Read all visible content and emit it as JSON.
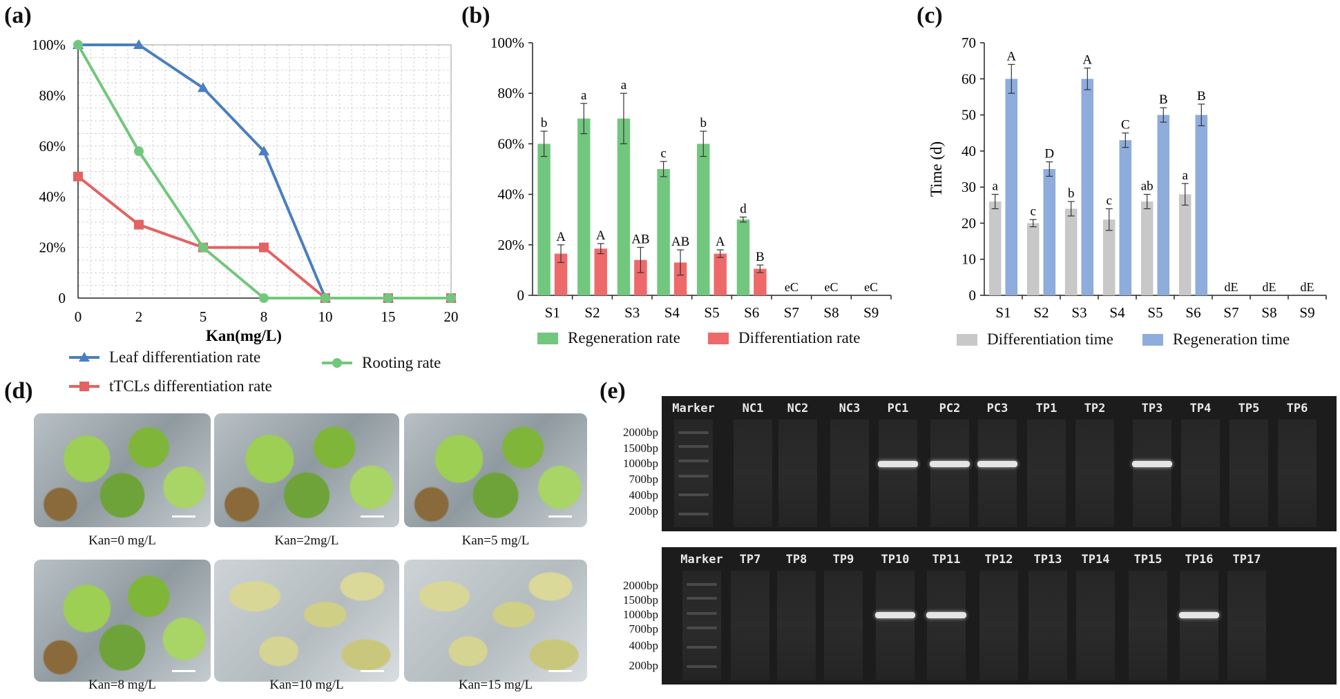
{
  "panels": {
    "a": "(a)",
    "b": "(b)",
    "c": "(c)",
    "d": "(d)",
    "e": "(e)"
  },
  "colors": {
    "blue": "#4a7fc0",
    "red": "#e36262",
    "green": "#72c77e",
    "bar_green": "#72c77e",
    "bar_red": "#ee6a6a",
    "bar_gray": "#c8c8c8",
    "bar_blue": "#8eacdc"
  },
  "chart_data": [
    {
      "id": "a",
      "type": "line",
      "xlabel": "Kan(mg/L)",
      "x": [
        0,
        2,
        5,
        8,
        10,
        15,
        20
      ],
      "ylim": [
        0,
        100
      ],
      "yticks": [
        "0",
        "20%",
        "40%",
        "60%",
        "80%",
        "100%"
      ],
      "grid": true,
      "series": [
        {
          "name": "Leaf differentiation rate",
          "marker": "triangle",
          "values": [
            100,
            100,
            83,
            58,
            0,
            0,
            0
          ]
        },
        {
          "name": "tTCLs differentiation rate",
          "marker": "square",
          "values": [
            48,
            29,
            20,
            20,
            0,
            0,
            0
          ]
        },
        {
          "name": "Rooting rate",
          "marker": "circle",
          "values": [
            100,
            58,
            20,
            0,
            0,
            0,
            0
          ]
        }
      ]
    },
    {
      "id": "b",
      "type": "bar",
      "categories": [
        "S1",
        "S2",
        "S3",
        "S4",
        "S5",
        "S6",
        "S7",
        "S8",
        "S9"
      ],
      "ylim": [
        0,
        100
      ],
      "yticks": [
        "0",
        "20%",
        "40%",
        "60%",
        "80%",
        "100%"
      ],
      "series": [
        {
          "name": "Regeneration rate",
          "values": [
            60,
            70,
            70,
            50,
            60,
            30,
            0,
            0,
            0
          ],
          "errors": [
            5,
            6,
            10,
            3,
            5,
            1,
            0,
            0,
            0
          ],
          "letters": [
            "b",
            "a",
            "a",
            "c",
            "b",
            "d",
            "",
            "",
            ""
          ]
        },
        {
          "name": "Differentiation rate",
          "values": [
            16.5,
            18.5,
            14,
            13,
            16.5,
            10.5,
            0,
            0,
            0
          ],
          "errors": [
            3.5,
            2,
            5,
            5,
            1.5,
            1.5,
            0,
            0,
            0
          ],
          "letters": [
            "A",
            "A",
            "AB",
            "AB",
            "A",
            "B",
            "",
            "",
            ""
          ]
        }
      ],
      "zero_labels": [
        "",
        "",
        "",
        "",
        "",
        "",
        "eC",
        "eC",
        "eC"
      ]
    },
    {
      "id": "c",
      "type": "bar",
      "categories": [
        "S1",
        "S2",
        "S3",
        "S4",
        "S5",
        "S6",
        "S7",
        "S8",
        "S9"
      ],
      "ylabel": "Time (d)",
      "ylim": [
        0,
        70
      ],
      "yticks": [
        "0",
        "10",
        "20",
        "30",
        "40",
        "50",
        "60",
        "70"
      ],
      "series": [
        {
          "name": "Differentiation time",
          "values": [
            26,
            20,
            24,
            21,
            26,
            28,
            0,
            0,
            0
          ],
          "errors": [
            2,
            1,
            2,
            3,
            2,
            3,
            0,
            0,
            0
          ],
          "letters": [
            "a",
            "c",
            "b",
            "c",
            "ab",
            "a",
            "",
            "",
            ""
          ]
        },
        {
          "name": "Regeneration time",
          "values": [
            60,
            35,
            60,
            43,
            50,
            50,
            0,
            0,
            0
          ],
          "errors": [
            4,
            2,
            3,
            2,
            2,
            3,
            0,
            0,
            0
          ],
          "letters": [
            "A",
            "D",
            "A",
            "C",
            "B",
            "B",
            "",
            "",
            ""
          ]
        }
      ],
      "zero_labels": [
        "",
        "",
        "",
        "",
        "",
        "",
        "dE",
        "dE",
        "dE"
      ]
    }
  ],
  "photos": [
    {
      "caption": "Kan=0 mg/L",
      "tone": "green"
    },
    {
      "caption": "Kan=2mg/L",
      "tone": "green"
    },
    {
      "caption": "Kan=5 mg/L",
      "tone": "green"
    },
    {
      "caption": "Kan=8 mg/L",
      "tone": "green"
    },
    {
      "caption": "Kan=10 mg/L",
      "tone": "pale"
    },
    {
      "caption": "Kan=15 mg/L",
      "tone": "pale"
    }
  ],
  "gels": [
    {
      "lanes": [
        "Marker",
        "NC1",
        "NC2",
        "NC3",
        "PC1",
        "PC2",
        "PC3",
        "TP1",
        "TP2",
        "TP3",
        "TP4",
        "TP5",
        "TP6"
      ],
      "bright_lanes": [
        "PC1",
        "PC2",
        "PC3",
        "TP3"
      ],
      "marker_labels": [
        "2000bp",
        "1500bp",
        "1000bp",
        "700bp",
        "400bp",
        "200bp"
      ]
    },
    {
      "lanes": [
        "Marker",
        "TP7",
        "TP8",
        "TP9",
        "TP10",
        "TP11",
        "TP12",
        "TP13",
        "TP14",
        "TP15",
        "TP16",
        "TP17"
      ],
      "bright_lanes": [
        "TP10",
        "TP11",
        "TP16"
      ],
      "marker_labels": [
        "2000bp",
        "1500bp",
        "1000bp",
        "700bp",
        "400bp",
        "200bp"
      ]
    }
  ]
}
